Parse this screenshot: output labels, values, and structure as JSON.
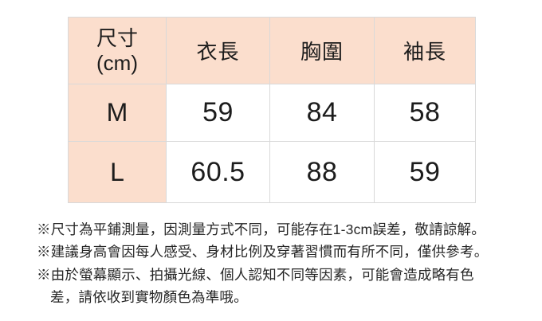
{
  "table": {
    "header": {
      "size_unit_line1": "尺寸",
      "size_unit_line2": "(cm)",
      "columns": [
        "衣長",
        "胸圍",
        "袖長"
      ]
    },
    "rows": [
      {
        "size": "M",
        "values": [
          "59",
          "84",
          "58"
        ]
      },
      {
        "size": "L",
        "values": [
          "60.5",
          "88",
          "59"
        ]
      }
    ]
  },
  "notes": [
    {
      "lines": [
        "※尺寸為平鋪測量，因測量方式不同，可能存在1-3cm誤差，敬請諒解。"
      ]
    },
    {
      "lines": [
        "※建議身高會因每人感受、身材比例及穿著習慣而有所不同，僅供參考。"
      ]
    },
    {
      "lines": [
        "※由於螢幕顯示、拍攝光線、個人認知不同等因素，可能會造成略有色",
        "差，請依收到實物顏色為準哦。"
      ]
    }
  ],
  "colors": {
    "header_bg": "#fbdecd",
    "border": "#d9d9d9",
    "text": "#1c1c1c",
    "note_text": "#262626",
    "page_bg": "#ffffff"
  }
}
